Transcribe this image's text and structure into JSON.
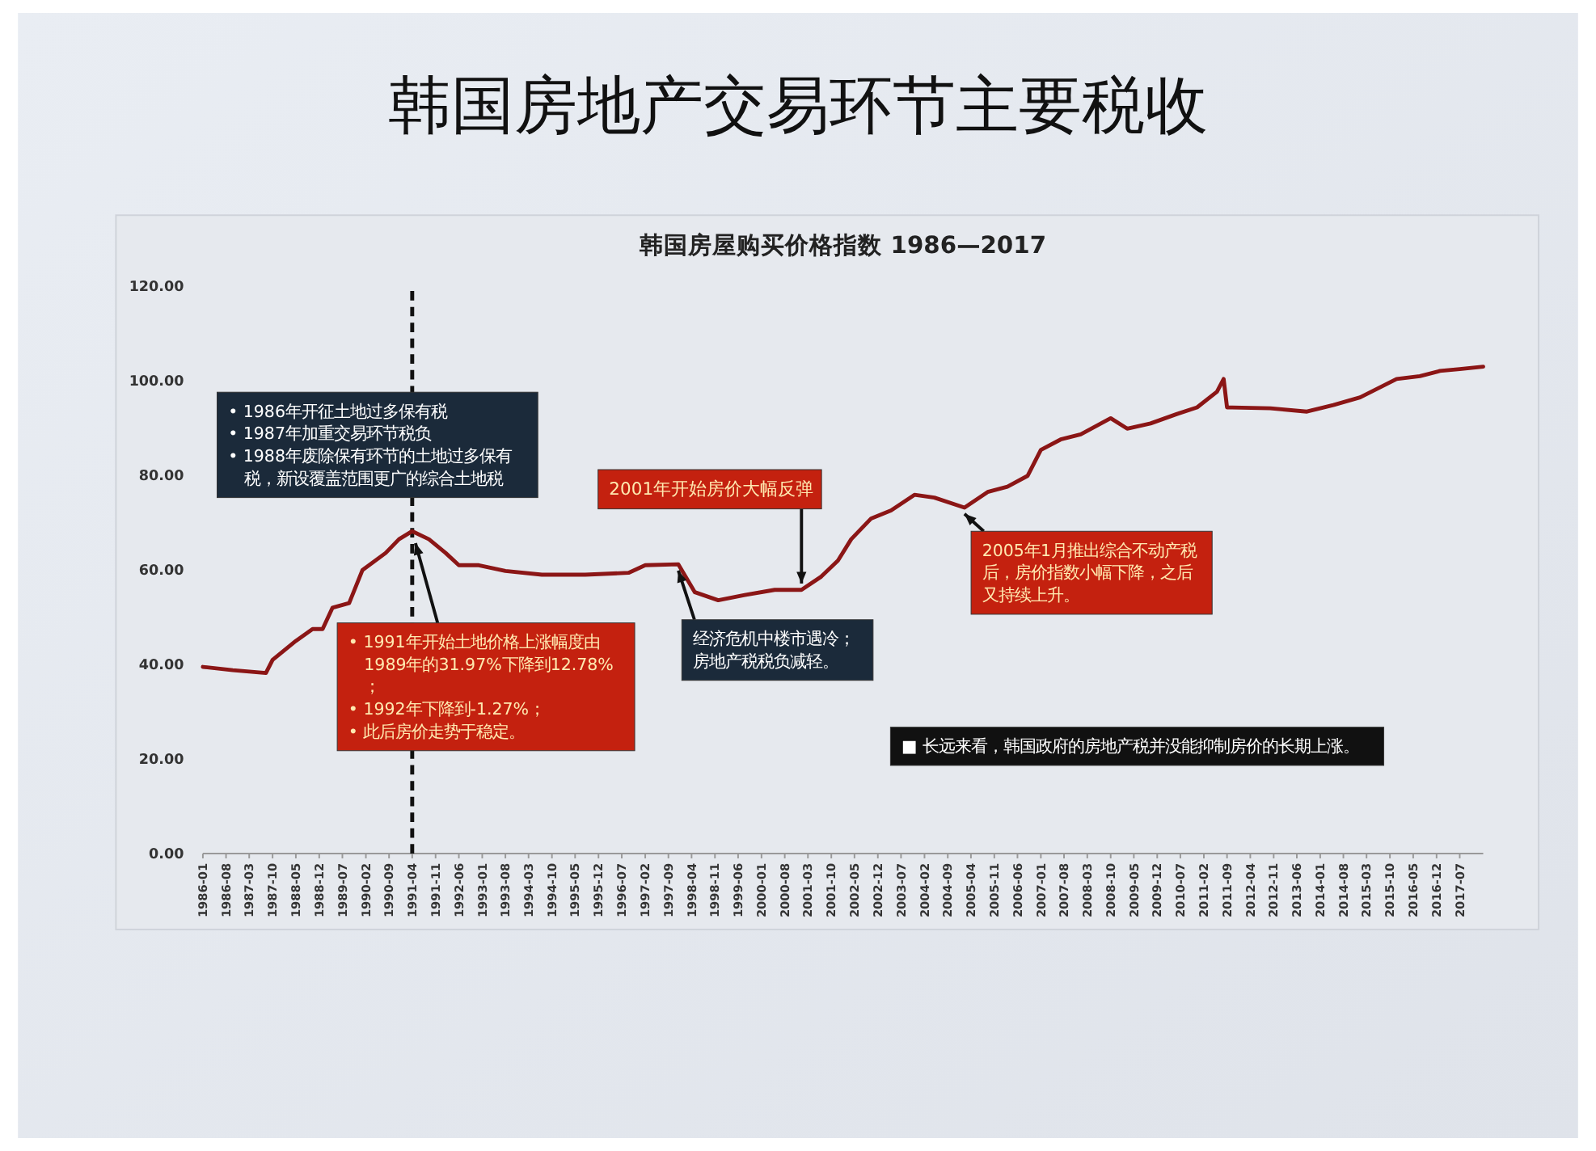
{
  "chart_data": {
    "type": "line",
    "title": "韩国房地产交易环节主要税收",
    "subtitle": "韩国房屋购买价格指数 1986—2017",
    "x": [
      "1986-01",
      "1986-10",
      "1987-08",
      "1987-10",
      "1988-05",
      "1988-10",
      "1989-01",
      "1989-04",
      "1989-09",
      "1990-01",
      "1990-08",
      "1990-12",
      "1991-04",
      "1991-09",
      "1992-02",
      "1992-06",
      "1992-12",
      "1993-08",
      "1994-07",
      "1995-08",
      "1996-09",
      "1997-02",
      "1997-12",
      "1998-05",
      "1998-12",
      "1999-08",
      "2000-05",
      "2001-01",
      "2001-07",
      "2001-12",
      "2002-04",
      "2002-10",
      "2003-04",
      "2003-11",
      "2004-05",
      "2005-02",
      "2005-09",
      "2006-03",
      "2006-09",
      "2007-01",
      "2007-07",
      "2008-01",
      "2008-10",
      "2009-03",
      "2009-10",
      "2010-06",
      "2010-12",
      "2011-06",
      "2011-08",
      "2011-09",
      "2012-10",
      "2013-09",
      "2014-05",
      "2015-01",
      "2015-12",
      "2016-07",
      "2017-01",
      "2017-07",
      "2018-02"
    ],
    "series": [
      {
        "color": "#8b1616",
        "values": [
          39.5,
          38.8,
          38.2,
          41,
          45,
          47.5,
          47.5,
          52,
          53,
          60,
          63.6,
          66.5,
          68.2,
          66.5,
          63.6,
          61,
          61,
          59.8,
          59,
          59,
          59.4,
          61,
          61.2,
          55.3,
          53.6,
          54.7,
          55.8,
          55.8,
          58.6,
          62,
          66.5,
          70.9,
          72.6,
          75.9,
          75.3,
          73.2,
          76.5,
          77.6,
          79.9,
          85.4,
          87.6,
          88.7,
          92.1,
          89.9,
          91,
          93,
          94.4,
          97.7,
          100.4,
          94.4,
          94.2,
          93.5,
          94.9,
          96.5,
          100.4,
          101,
          102.1,
          102.5,
          103
        ]
      }
    ],
    "xlim": [
      "1986-01",
      "2018-02"
    ],
    "xticks": [
      "1986-01",
      "1986-08",
      "1987-03",
      "1987-10",
      "1988-05",
      "1988-12",
      "1989-07",
      "1990-02",
      "1990-09",
      "1991-04",
      "1991-11",
      "1992-06",
      "1993-01",
      "1993-08",
      "1994-03",
      "1994-10",
      "1995-05",
      "1995-12",
      "1996-07",
      "1997-02",
      "1997-09",
      "1998-04",
      "1998-11",
      "1999-06",
      "2000-01",
      "2000-08",
      "2001-03",
      "2001-10",
      "2002-05",
      "2002-12",
      "2003-07",
      "2004-02",
      "2004-09",
      "2005-04",
      "2005-11",
      "2006-06",
      "2007-01",
      "2007-08",
      "2008-03",
      "2008-10",
      "2009-05",
      "2009-12",
      "2010-07",
      "2011-02",
      "2011-09",
      "2012-04",
      "2012-11",
      "2013-06",
      "2014-01",
      "2014-08",
      "2015-03",
      "2015-10",
      "2016-05",
      "2016-12",
      "2017-07"
    ],
    "ylim": [
      0,
      120
    ],
    "yticks": [
      {
        "value": 0,
        "label": "0.00"
      },
      {
        "value": 20,
        "label": "20.00"
      },
      {
        "value": 40,
        "label": "40.00"
      },
      {
        "value": 60,
        "label": "60.00"
      },
      {
        "value": 80,
        "label": "80.00"
      },
      {
        "value": 100,
        "label": "100.00"
      },
      {
        "value": 120,
        "label": "120.00"
      }
    ],
    "ref_lines": [
      {
        "axis": "x",
        "value": "1991-04",
        "line_style": "dashed",
        "color": "#111111"
      }
    ],
    "annotations": [
      "• 1986年开征土地过多保有税\n• 1987年加重交易环节税负\n• 1988年废除保有环节的土地过多保有税，新设覆盖范围更广的综合土地税",
      {
        "text": "• 1991年开始土地价格上涨幅度由1989年的31.97%下降到12.78%；\n• 1992年下降到-1.27%；\n• 此后房价走势于稳定。",
        "x": "1991-05",
        "y": 67
      },
      {
        "text": "2001年开始房价大幅反弹",
        "x": "2001-01",
        "y": 55.8
      },
      {
        "text": "经济危机中楼市遇冷；房地产税税负减轻。",
        "x": "1997-12",
        "y": 61.2
      },
      {
        "text": "2005年1月推出综合不动产税后，房价指数小幅下降，之后又持续上升。",
        "x": "2005-02",
        "y": 73.2
      },
      "■ 长远来看，韩国政府的房地产税并没能抑制房价的长期上涨。"
    ],
    "marker": "none",
    "line_style": "solid"
  }
}
